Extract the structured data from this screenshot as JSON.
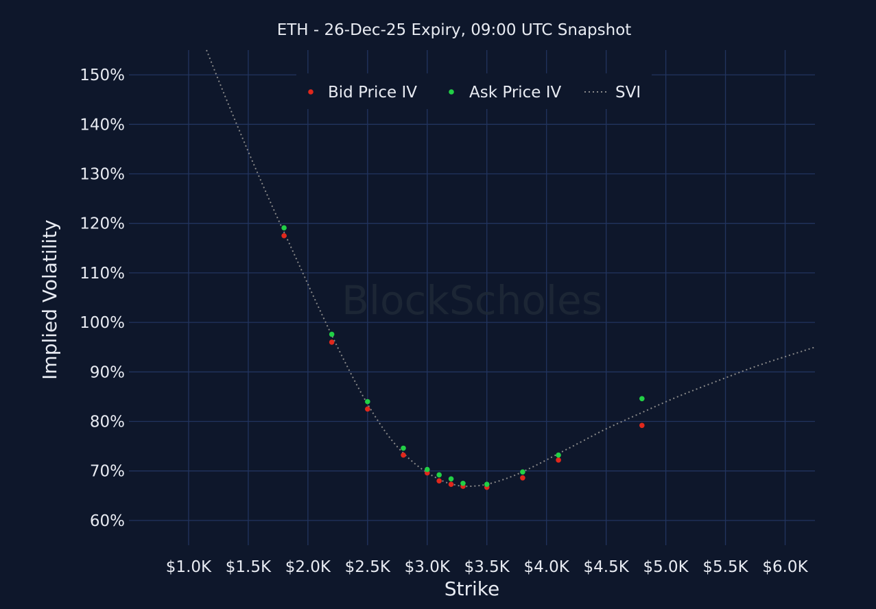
{
  "chart_data": {
    "type": "scatter",
    "title": "ETH - 26-Dec-25 Expiry, 09:00 UTC Snapshot",
    "xlabel": "Strike",
    "ylabel": "Implied Volatility",
    "xlim": [
      500,
      6250
    ],
    "ylim": [
      55,
      155
    ],
    "x_ticks": [
      1000,
      1500,
      2000,
      2500,
      3000,
      3500,
      4000,
      4500,
      5000,
      5500,
      6000
    ],
    "x_tick_labels": [
      "$1.0K",
      "$1.5K",
      "$2.0K",
      "$2.5K",
      "$3.0K",
      "$3.5K",
      "$4.0K",
      "$4.5K",
      "$5.0K",
      "$5.5K",
      "$6.0K"
    ],
    "y_ticks": [
      60,
      70,
      80,
      90,
      100,
      110,
      120,
      130,
      140,
      150
    ],
    "y_tick_labels": [
      "60%",
      "70%",
      "80%",
      "90%",
      "100%",
      "110%",
      "120%",
      "130%",
      "140%",
      "150%"
    ],
    "grid": true,
    "legend_position": "top-center",
    "watermark": "BlockScholes",
    "series": [
      {
        "name": "Bid Price IV",
        "kind": "scatter",
        "color": "#e0281c",
        "points": [
          {
            "x": 1800,
            "y": 117.5
          },
          {
            "x": 2200,
            "y": 96.0
          },
          {
            "x": 2500,
            "y": 82.5
          },
          {
            "x": 2800,
            "y": 73.2
          },
          {
            "x": 3000,
            "y": 69.6
          },
          {
            "x": 3100,
            "y": 68.0
          },
          {
            "x": 3200,
            "y": 67.3
          },
          {
            "x": 3300,
            "y": 66.9
          },
          {
            "x": 3500,
            "y": 66.7
          },
          {
            "x": 3800,
            "y": 68.6
          },
          {
            "x": 4100,
            "y": 72.2
          },
          {
            "x": 4800,
            "y": 79.2
          }
        ]
      },
      {
        "name": "Ask Price IV",
        "kind": "scatter",
        "color": "#22d046",
        "points": [
          {
            "x": 1800,
            "y": 119.1
          },
          {
            "x": 2200,
            "y": 97.6
          },
          {
            "x": 2500,
            "y": 84.0
          },
          {
            "x": 2800,
            "y": 74.6
          },
          {
            "x": 3000,
            "y": 70.3
          },
          {
            "x": 3100,
            "y": 69.2
          },
          {
            "x": 3200,
            "y": 68.4
          },
          {
            "x": 3300,
            "y": 67.5
          },
          {
            "x": 3500,
            "y": 67.3
          },
          {
            "x": 3800,
            "y": 69.8
          },
          {
            "x": 4100,
            "y": 73.2
          },
          {
            "x": 4800,
            "y": 84.6
          }
        ]
      },
      {
        "name": "SVI",
        "kind": "line",
        "style": "dotted",
        "color": "#8a8a8a",
        "points": [
          {
            "x": 1150,
            "y": 155.0
          },
          {
            "x": 1300,
            "y": 146.0
          },
          {
            "x": 1500,
            "y": 134.5
          },
          {
            "x": 1700,
            "y": 123.5
          },
          {
            "x": 1900,
            "y": 113.0
          },
          {
            "x": 2100,
            "y": 102.5
          },
          {
            "x": 2300,
            "y": 92.5
          },
          {
            "x": 2500,
            "y": 83.5
          },
          {
            "x": 2700,
            "y": 76.3
          },
          {
            "x": 2900,
            "y": 71.4
          },
          {
            "x": 3100,
            "y": 68.3
          },
          {
            "x": 3250,
            "y": 67.1
          },
          {
            "x": 3350,
            "y": 66.9
          },
          {
            "x": 3500,
            "y": 67.3
          },
          {
            "x": 3700,
            "y": 68.8
          },
          {
            "x": 3900,
            "y": 71.0
          },
          {
            "x": 4100,
            "y": 73.5
          },
          {
            "x": 4300,
            "y": 76.0
          },
          {
            "x": 4500,
            "y": 78.5
          },
          {
            "x": 4800,
            "y": 81.8
          },
          {
            "x": 5100,
            "y": 85.0
          },
          {
            "x": 5500,
            "y": 88.8
          },
          {
            "x": 5800,
            "y": 91.5
          },
          {
            "x": 6250,
            "y": 95.0
          }
        ]
      }
    ]
  }
}
